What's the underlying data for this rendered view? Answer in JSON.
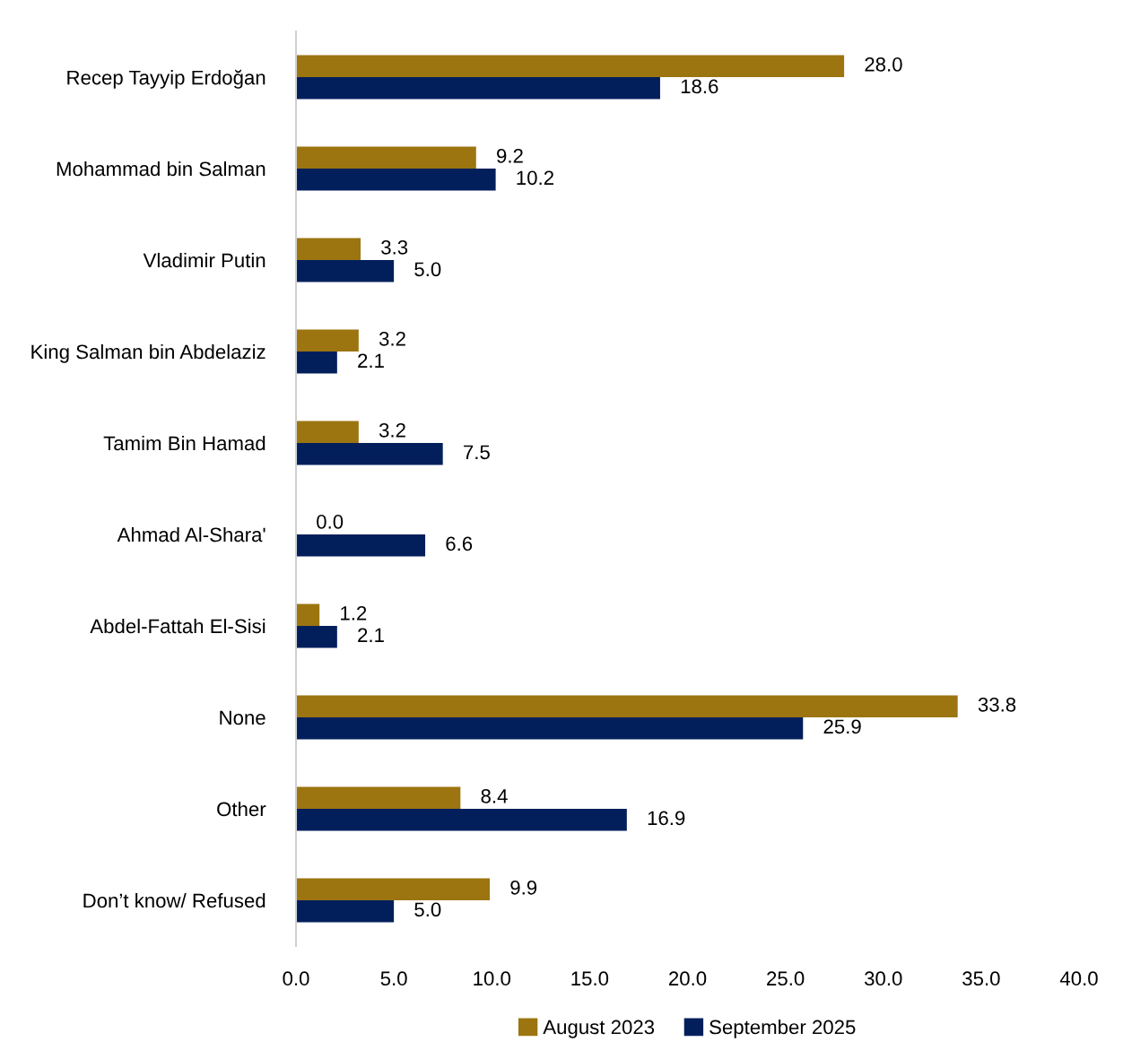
{
  "chart_data": {
    "type": "bar",
    "orientation": "horizontal",
    "categories": [
      "Recep Tayyip Erdoğan",
      "Mohammad bin Salman",
      "Vladimir Putin",
      "King Salman bin Abdelaziz",
      "Tamim Bin Hamad",
      "Ahmad Al-Shara'",
      "Abdel-Fattah El-Sisi",
      "None",
      "Other",
      "Don’t know/ Refused"
    ],
    "series": [
      {
        "name": "August 2023",
        "color": "#9c7510",
        "values": [
          28.0,
          9.2,
          3.3,
          3.2,
          3.2,
          0.0,
          1.2,
          33.8,
          8.4,
          9.9
        ],
        "value_labels": [
          "28.0",
          "9.2",
          "3.3",
          "3.2",
          "3.2",
          "0.0",
          "1.2",
          "33.8",
          "8.4",
          "9.9"
        ]
      },
      {
        "name": "September 2025",
        "color": "#021f5c",
        "values": [
          18.6,
          10.2,
          5.0,
          2.1,
          7.5,
          6.6,
          2.1,
          25.9,
          16.9,
          5.0
        ],
        "value_labels": [
          "18.6",
          "10.2",
          "5.0",
          "2.1",
          "7.5",
          "6.6",
          "2.1",
          "25.9",
          "16.9",
          "5.0"
        ]
      }
    ],
    "xlim": [
      0,
      40
    ],
    "xticks": [
      {
        "value": 0,
        "label": "0.0"
      },
      {
        "value": 5,
        "label": "5.0"
      },
      {
        "value": 10,
        "label": "10.0"
      },
      {
        "value": 15,
        "label": "15.0"
      },
      {
        "value": 20,
        "label": "20.0"
      },
      {
        "value": 25,
        "label": "25.0"
      },
      {
        "value": 30,
        "label": "30.0"
      },
      {
        "value": 35,
        "label": "35.0"
      },
      {
        "value": 40,
        "label": "40.0"
      }
    ],
    "grid": false,
    "legend": "bottom"
  }
}
